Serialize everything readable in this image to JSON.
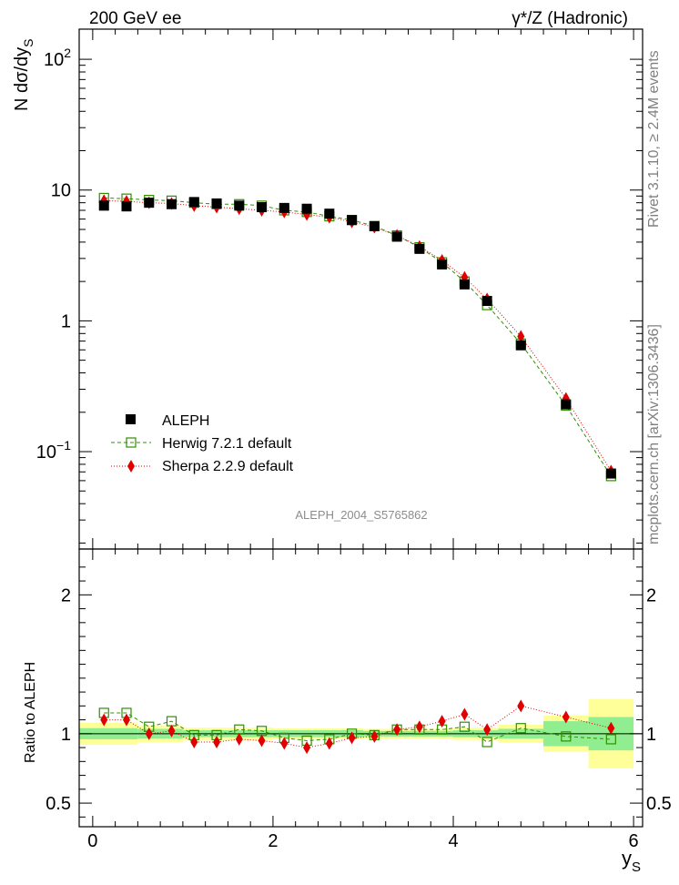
{
  "header": {
    "left": "200 GeV ee",
    "right": "γ*/Z (Hadronic)"
  },
  "side": {
    "rivet": "Rivet 3.1.10, ≥ 2.4M events",
    "mcplots": "mcplots.cern.ch [arXiv:1306.3436]"
  },
  "analysis_label": "ALEPH_2004_S5765862",
  "colors": {
    "aleph": "#000000",
    "herwig": "#2f8f00",
    "sherpa": "#e00000",
    "band_inner": "#90ee90",
    "band_outer": "#ffff99"
  },
  "chart_data": [
    {
      "type": "scatter",
      "ylabel": "N dσ/dy_S",
      "yscale": "log",
      "ylim": [
        0.018,
        170
      ],
      "xlim": [
        -0.15,
        6.1
      ],
      "yticks": [
        "10^-1",
        "1",
        "10",
        "10^2"
      ],
      "legend_position": "bottom-left",
      "series": [
        {
          "name": "ALEPH",
          "style": "filled-square",
          "x": [
            0.125,
            0.375,
            0.625,
            0.875,
            1.125,
            1.375,
            1.625,
            1.875,
            2.125,
            2.375,
            2.625,
            2.875,
            3.125,
            3.375,
            3.625,
            3.875,
            4.125,
            4.375,
            4.75,
            5.25,
            5.75
          ],
          "y": [
            7.6,
            7.5,
            8.0,
            7.8,
            8.1,
            7.9,
            7.6,
            7.4,
            7.3,
            7.2,
            6.6,
            5.9,
            5.3,
            4.4,
            3.55,
            2.7,
            1.9,
            1.42,
            0.65,
            0.23,
            0.068
          ]
        },
        {
          "name": "Herwig 7.2.1 default",
          "style": "open-square-dashed",
          "x": [
            0.125,
            0.375,
            0.625,
            0.875,
            1.125,
            1.375,
            1.625,
            1.875,
            2.125,
            2.375,
            2.625,
            2.875,
            3.125,
            3.375,
            3.625,
            3.875,
            4.125,
            4.375,
            4.75,
            5.25,
            5.75
          ],
          "y": [
            8.7,
            8.6,
            8.4,
            8.3,
            8.0,
            7.8,
            7.8,
            7.6,
            7.0,
            6.8,
            6.3,
            5.9,
            5.3,
            4.5,
            3.65,
            2.8,
            2.0,
            1.32,
            0.67,
            0.225,
            0.065
          ]
        },
        {
          "name": "Sherpa 2.2.9 default",
          "style": "diamond-dotted",
          "x": [
            0.125,
            0.375,
            0.625,
            0.875,
            1.125,
            1.375,
            1.625,
            1.875,
            2.125,
            2.375,
            2.625,
            2.875,
            3.125,
            3.375,
            3.625,
            3.875,
            4.125,
            4.375,
            4.75,
            5.25,
            5.75
          ],
          "y": [
            8.3,
            8.2,
            8.0,
            7.9,
            7.6,
            7.4,
            7.2,
            7.0,
            6.8,
            6.5,
            6.2,
            5.7,
            5.2,
            4.5,
            3.7,
            2.9,
            2.15,
            1.47,
            0.76,
            0.255,
            0.071
          ]
        }
      ]
    },
    {
      "type": "scatter",
      "ylabel": "Ratio to ALEPH",
      "xlabel": "y_S",
      "ylim": [
        0.33,
        2.33
      ],
      "xlim": [
        -0.15,
        6.1
      ],
      "xticks": [
        0,
        2,
        4,
        6
      ],
      "yticks": [
        0.5,
        1,
        2
      ],
      "bands": {
        "edges": [
          -0.15,
          0.5,
          1.0,
          2.0,
          3.0,
          3.5,
          4.0,
          4.5,
          5.0,
          5.5,
          6.0
        ],
        "inner_half": [
          0.04,
          0.035,
          0.025,
          0.025,
          0.02,
          0.02,
          0.025,
          0.035,
          0.09,
          0.12
        ],
        "outer_half": [
          0.08,
          0.06,
          0.045,
          0.04,
          0.035,
          0.035,
          0.045,
          0.065,
          0.13,
          0.25
        ]
      },
      "series": [
        {
          "name": "Herwig 7.2.1 default",
          "x": [
            0.125,
            0.375,
            0.625,
            0.875,
            1.125,
            1.375,
            1.625,
            1.875,
            2.125,
            2.375,
            2.625,
            2.875,
            3.125,
            3.375,
            3.625,
            3.875,
            4.125,
            4.375,
            4.75,
            5.25,
            5.75
          ],
          "y": [
            1.15,
            1.15,
            1.05,
            1.09,
            0.99,
            0.99,
            1.03,
            1.02,
            0.97,
            0.95,
            0.96,
            1.0,
            0.99,
            1.03,
            1.03,
            1.03,
            1.05,
            0.94,
            1.04,
            0.98,
            0.96
          ]
        },
        {
          "name": "Sherpa 2.2.9 default",
          "x": [
            0.125,
            0.375,
            0.625,
            0.875,
            1.125,
            1.375,
            1.625,
            1.875,
            2.125,
            2.375,
            2.625,
            2.875,
            3.125,
            3.375,
            3.625,
            3.875,
            4.125,
            4.375,
            4.75,
            5.25,
            5.75
          ],
          "y": [
            1.1,
            1.1,
            1.0,
            1.02,
            0.94,
            0.94,
            0.96,
            0.95,
            0.93,
            0.9,
            0.93,
            0.97,
            0.98,
            1.03,
            1.05,
            1.09,
            1.14,
            1.03,
            1.2,
            1.12,
            1.04
          ]
        }
      ]
    }
  ]
}
